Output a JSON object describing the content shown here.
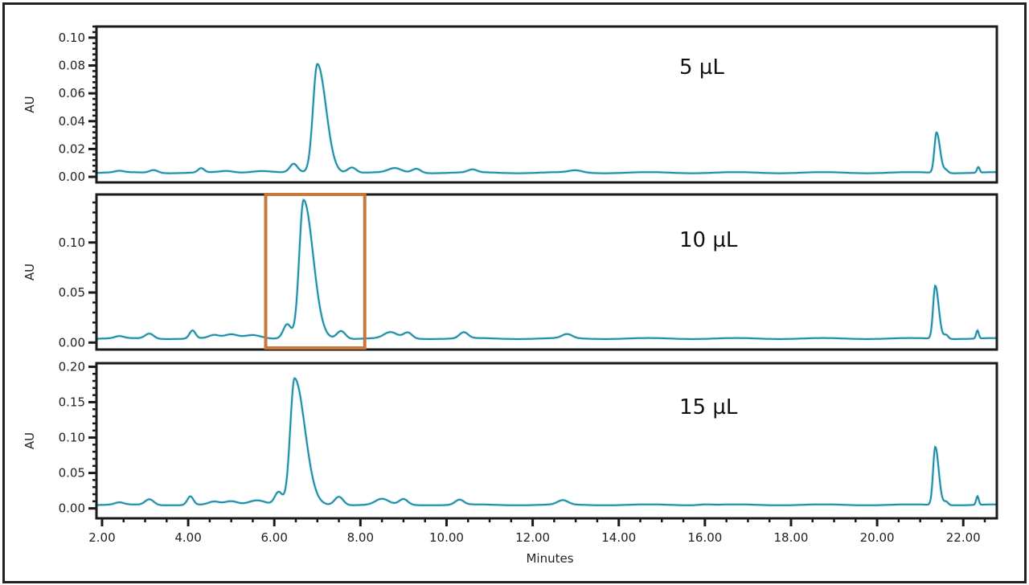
{
  "chart_data": {
    "type": "line",
    "title": "",
    "xlabel": "Minutes",
    "x_ticks": [
      "2.00",
      "4.00",
      "6.00",
      "8.00",
      "10.00",
      "12.00",
      "14.00",
      "16.00",
      "18.00",
      "20.00",
      "22.00"
    ],
    "xlim": [
      1.87,
      22.78
    ],
    "line_color": "#1f8aa3",
    "highlight_box": {
      "panel": 1,
      "x_range": [
        5.8,
        8.1
      ],
      "color": "#c8793a"
    },
    "panels": [
      {
        "label": "5 µL",
        "ylabel": "AU",
        "ylim": [
          -0.004,
          0.108
        ],
        "y_ticks": [
          "0.00",
          "0.02",
          "0.04",
          "0.06",
          "0.08",
          "0.10"
        ],
        "y_tick_values": [
          0,
          0.02,
          0.04,
          0.06,
          0.08,
          0.1
        ],
        "baseline": 0.003,
        "peaks": [
          {
            "t": 2.4,
            "h": 0.001,
            "w": 0.1
          },
          {
            "t": 3.2,
            "h": 0.002,
            "w": 0.1
          },
          {
            "t": 4.3,
            "h": 0.003,
            "w": 0.07
          },
          {
            "t": 4.9,
            "h": 0.001,
            "w": 0.15
          },
          {
            "t": 5.7,
            "h": 0.0015,
            "w": 0.25
          },
          {
            "t": 6.45,
            "h": 0.006,
            "w": 0.09
          },
          {
            "t": 7.0,
            "h": 0.078,
            "w": 0.1,
            "tail": 0.2
          },
          {
            "t": 7.8,
            "h": 0.004,
            "w": 0.1
          },
          {
            "t": 8.8,
            "h": 0.003,
            "w": 0.15
          },
          {
            "t": 9.3,
            "h": 0.003,
            "w": 0.1
          },
          {
            "t": 10.6,
            "h": 0.002,
            "w": 0.1
          },
          {
            "t": 13.0,
            "h": 0.0015,
            "w": 0.15
          },
          {
            "t": 21.38,
            "h": 0.029,
            "w": 0.05,
            "tail": 0.08
          },
          {
            "t": 21.6,
            "h": 0.002,
            "w": 0.05
          },
          {
            "t": 22.35,
            "h": 0.004,
            "w": 0.03
          }
        ]
      },
      {
        "label": "10 µL",
        "ylabel": "AU",
        "ylim": [
          -0.007,
          0.148
        ],
        "y_ticks": [
          "0.00",
          "0.05",
          "0.10"
        ],
        "y_tick_values": [
          0,
          0.05,
          0.1
        ],
        "baseline": 0.004,
        "peaks": [
          {
            "t": 2.4,
            "h": 0.002,
            "w": 0.1
          },
          {
            "t": 3.1,
            "h": 0.005,
            "w": 0.1
          },
          {
            "t": 4.1,
            "h": 0.008,
            "w": 0.07
          },
          {
            "t": 4.6,
            "h": 0.003,
            "w": 0.12
          },
          {
            "t": 5.0,
            "h": 0.004,
            "w": 0.15
          },
          {
            "t": 5.5,
            "h": 0.004,
            "w": 0.2
          },
          {
            "t": 6.3,
            "h": 0.014,
            "w": 0.09
          },
          {
            "t": 6.68,
            "h": 0.138,
            "w": 0.1,
            "tail": 0.22
          },
          {
            "t": 7.55,
            "h": 0.008,
            "w": 0.1
          },
          {
            "t": 8.7,
            "h": 0.006,
            "w": 0.15
          },
          {
            "t": 9.1,
            "h": 0.006,
            "w": 0.1
          },
          {
            "t": 10.4,
            "h": 0.006,
            "w": 0.1
          },
          {
            "t": 12.8,
            "h": 0.004,
            "w": 0.12
          },
          {
            "t": 21.35,
            "h": 0.053,
            "w": 0.05,
            "tail": 0.08
          },
          {
            "t": 21.6,
            "h": 0.004,
            "w": 0.05
          },
          {
            "t": 22.33,
            "h": 0.008,
            "w": 0.03
          }
        ]
      },
      {
        "label": "15 µL",
        "ylabel": "AU",
        "ylim": [
          -0.014,
          0.205
        ],
        "y_ticks": [
          "0.00",
          "0.05",
          "0.10",
          "0.15",
          "0.20"
        ],
        "y_tick_values": [
          0,
          0.05,
          0.1,
          0.15,
          0.2
        ],
        "baseline": 0.005,
        "peaks": [
          {
            "t": 2.4,
            "h": 0.003,
            "w": 0.1
          },
          {
            "t": 3.1,
            "h": 0.008,
            "w": 0.1
          },
          {
            "t": 4.05,
            "h": 0.012,
            "w": 0.07
          },
          {
            "t": 4.6,
            "h": 0.004,
            "w": 0.12
          },
          {
            "t": 5.0,
            "h": 0.005,
            "w": 0.15
          },
          {
            "t": 5.6,
            "h": 0.007,
            "w": 0.2
          },
          {
            "t": 6.1,
            "h": 0.018,
            "w": 0.09
          },
          {
            "t": 6.47,
            "h": 0.178,
            "w": 0.1,
            "tail": 0.24
          },
          {
            "t": 7.5,
            "h": 0.012,
            "w": 0.1
          },
          {
            "t": 8.5,
            "h": 0.008,
            "w": 0.15
          },
          {
            "t": 9.0,
            "h": 0.008,
            "w": 0.1
          },
          {
            "t": 10.3,
            "h": 0.007,
            "w": 0.1
          },
          {
            "t": 12.7,
            "h": 0.006,
            "w": 0.12
          },
          {
            "t": 16.0,
            "h": 0.001,
            "w": 0.15
          },
          {
            "t": 21.35,
            "h": 0.082,
            "w": 0.05,
            "tail": 0.08
          },
          {
            "t": 21.6,
            "h": 0.005,
            "w": 0.05
          },
          {
            "t": 22.33,
            "h": 0.012,
            "w": 0.03
          }
        ]
      }
    ]
  }
}
